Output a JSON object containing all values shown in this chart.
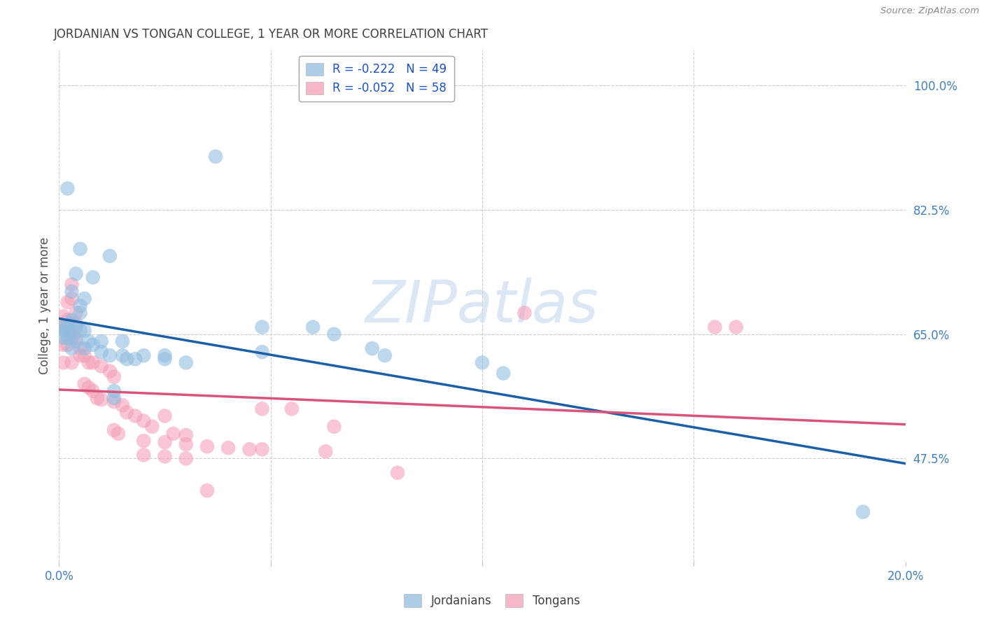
{
  "title": "JORDANIAN VS TONGAN COLLEGE, 1 YEAR OR MORE CORRELATION CHART",
  "source": "Source: ZipAtlas.com",
  "ylabel": "College, 1 year or more",
  "xlim": [
    0.0,
    0.2
  ],
  "ylim": [
    0.33,
    1.05
  ],
  "yticks": [
    0.475,
    0.65,
    0.825,
    1.0
  ],
  "ytick_labels": [
    "47.5%",
    "65.0%",
    "82.5%",
    "100.0%"
  ],
  "xticks": [
    0.0,
    0.05,
    0.1,
    0.15,
    0.2
  ],
  "xtick_labels": [
    "0.0%",
    "",
    "",
    "",
    "20.0%"
  ],
  "blue_line": [
    [
      0.0,
      0.672
    ],
    [
      0.2,
      0.468
    ]
  ],
  "pink_line": [
    [
      0.0,
      0.572
    ],
    [
      0.2,
      0.523
    ]
  ],
  "blue_scatter": [
    [
      0.002,
      0.855
    ],
    [
      0.037,
      0.9
    ],
    [
      0.005,
      0.77
    ],
    [
      0.012,
      0.76
    ],
    [
      0.004,
      0.735
    ],
    [
      0.008,
      0.73
    ],
    [
      0.003,
      0.71
    ],
    [
      0.006,
      0.7
    ],
    [
      0.005,
      0.69
    ],
    [
      0.005,
      0.68
    ],
    [
      0.003,
      0.67
    ],
    [
      0.003,
      0.665
    ],
    [
      0.001,
      0.66
    ],
    [
      0.002,
      0.66
    ],
    [
      0.004,
      0.66
    ],
    [
      0.001,
      0.655
    ],
    [
      0.002,
      0.655
    ],
    [
      0.005,
      0.655
    ],
    [
      0.006,
      0.655
    ],
    [
      0.001,
      0.645
    ],
    [
      0.002,
      0.645
    ],
    [
      0.003,
      0.645
    ],
    [
      0.004,
      0.64
    ],
    [
      0.007,
      0.64
    ],
    [
      0.01,
      0.64
    ],
    [
      0.015,
      0.64
    ],
    [
      0.008,
      0.635
    ],
    [
      0.003,
      0.63
    ],
    [
      0.006,
      0.63
    ],
    [
      0.01,
      0.625
    ],
    [
      0.012,
      0.62
    ],
    [
      0.015,
      0.62
    ],
    [
      0.02,
      0.62
    ],
    [
      0.025,
      0.62
    ],
    [
      0.016,
      0.615
    ],
    [
      0.018,
      0.615
    ],
    [
      0.025,
      0.615
    ],
    [
      0.03,
      0.61
    ],
    [
      0.048,
      0.66
    ],
    [
      0.048,
      0.625
    ],
    [
      0.06,
      0.66
    ],
    [
      0.065,
      0.65
    ],
    [
      0.074,
      0.63
    ],
    [
      0.077,
      0.62
    ],
    [
      0.1,
      0.61
    ],
    [
      0.105,
      0.595
    ],
    [
      0.013,
      0.57
    ],
    [
      0.013,
      0.56
    ],
    [
      0.19,
      0.4
    ]
  ],
  "pink_scatter": [
    [
      0.003,
      0.72
    ],
    [
      0.003,
      0.7
    ],
    [
      0.002,
      0.695
    ],
    [
      0.004,
      0.68
    ],
    [
      0.001,
      0.675
    ],
    [
      0.002,
      0.67
    ],
    [
      0.004,
      0.665
    ],
    [
      0.001,
      0.66
    ],
    [
      0.002,
      0.655
    ],
    [
      0.003,
      0.648
    ],
    [
      0.004,
      0.645
    ],
    [
      0.001,
      0.635
    ],
    [
      0.002,
      0.635
    ],
    [
      0.005,
      0.63
    ],
    [
      0.11,
      0.68
    ],
    [
      0.005,
      0.62
    ],
    [
      0.006,
      0.62
    ],
    [
      0.001,
      0.61
    ],
    [
      0.003,
      0.61
    ],
    [
      0.007,
      0.61
    ],
    [
      0.008,
      0.61
    ],
    [
      0.01,
      0.605
    ],
    [
      0.012,
      0.598
    ],
    [
      0.013,
      0.59
    ],
    [
      0.155,
      0.66
    ],
    [
      0.16,
      0.66
    ],
    [
      0.006,
      0.58
    ],
    [
      0.007,
      0.575
    ],
    [
      0.008,
      0.57
    ],
    [
      0.009,
      0.56
    ],
    [
      0.01,
      0.558
    ],
    [
      0.013,
      0.555
    ],
    [
      0.015,
      0.55
    ],
    [
      0.048,
      0.545
    ],
    [
      0.055,
      0.545
    ],
    [
      0.016,
      0.54
    ],
    [
      0.018,
      0.535
    ],
    [
      0.025,
      0.535
    ],
    [
      0.02,
      0.528
    ],
    [
      0.022,
      0.52
    ],
    [
      0.065,
      0.52
    ],
    [
      0.013,
      0.515
    ],
    [
      0.014,
      0.51
    ],
    [
      0.027,
      0.51
    ],
    [
      0.03,
      0.508
    ],
    [
      0.02,
      0.5
    ],
    [
      0.025,
      0.498
    ],
    [
      0.03,
      0.495
    ],
    [
      0.035,
      0.492
    ],
    [
      0.04,
      0.49
    ],
    [
      0.045,
      0.488
    ],
    [
      0.048,
      0.488
    ],
    [
      0.063,
      0.485
    ],
    [
      0.02,
      0.48
    ],
    [
      0.025,
      0.478
    ],
    [
      0.03,
      0.475
    ],
    [
      0.08,
      0.455
    ],
    [
      0.035,
      0.43
    ]
  ],
  "blue_line_color": "#1a5fa8",
  "pink_line_color": "#d9547a",
  "scatter_blue_color": "#92bde0",
  "scatter_pink_color": "#f4a0b8",
  "background_color": "#ffffff",
  "grid_color": "#cccccc",
  "title_color": "#404040",
  "axis_label_color": "#505050",
  "tick_color": "#4080c0",
  "watermark_color": "#ccddf0"
}
